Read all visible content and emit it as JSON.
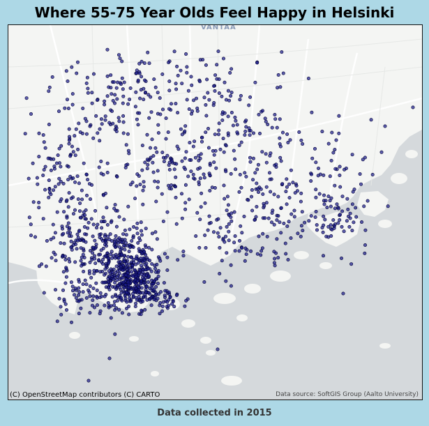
{
  "title": "Where 55-75 Year Olds Feel Happy in Helsinki",
  "attribution": "(C) OpenStreetMap contributors (C) CARTO",
  "data_source": "Data source: SoftGIS Group (Aalto University)",
  "place_labels": [
    "VANTAA"
  ],
  "footer": "Data collected in 2015",
  "colors": {
    "background": "#add8e6",
    "water": "#d5d9dc",
    "land": "#f4f5f3",
    "point_fill": "#1a1a8c",
    "point_stroke": "#000033"
  },
  "map": {
    "basemap": "CARTO Positron",
    "marker": "circle"
  }
}
